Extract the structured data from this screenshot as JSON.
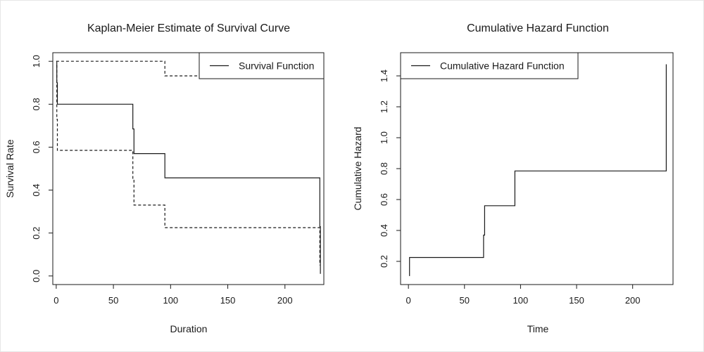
{
  "chart_data": [
    {
      "type": "line",
      "title": "Kaplan-Meier Estimate of Survival Curve",
      "xlabel": "Duration",
      "ylabel": "Survival Rate",
      "xlim": [
        -3,
        234
      ],
      "ylim": [
        -0.04,
        1.04
      ],
      "xticks": [
        0,
        50,
        100,
        150,
        200
      ],
      "xtick_labels": [
        "0",
        "50",
        "100",
        "150",
        "200"
      ],
      "yticks": [
        0.0,
        0.2,
        0.4,
        0.6,
        0.8,
        1.0
      ],
      "ytick_labels": [
        "0.0",
        "0.2",
        "0.4",
        "0.6",
        "0.8",
        "1.0"
      ],
      "legend": {
        "position": "top-right",
        "entries": [
          "Survival Function"
        ]
      },
      "series": [
        {
          "name": "Survival Function",
          "style": "solid",
          "x": [
            0,
            0.5,
            0.5,
            1,
            1,
            67,
            67,
            68,
            68,
            95,
            95,
            230.5,
            230.5,
            231,
            231
          ],
          "y": [
            1.0,
            1.0,
            0.9,
            0.9,
            0.8,
            0.8,
            0.685,
            0.685,
            0.57,
            0.57,
            0.457,
            0.457,
            0.23,
            0.23,
            0.01
          ]
        },
        {
          "style": "dashed",
          "x": [
            0,
            95,
            95,
            231
          ],
          "y": [
            1.0,
            1.0,
            0.932,
            0.932
          ]
        },
        {
          "style": "dashed",
          "x": [
            0,
            0.5,
            0.5,
            1,
            1,
            67,
            67,
            68,
            68,
            95,
            95,
            230.5,
            230.5
          ],
          "y": [
            0.98,
            0.98,
            0.73,
            0.73,
            0.585,
            0.585,
            0.45,
            0.45,
            0.33,
            0.33,
            0.225,
            0.225,
            0.05
          ]
        }
      ]
    },
    {
      "type": "line",
      "title": "Cumulative Hazard Function",
      "xlabel": "Time",
      "ylabel": "Cumulative Hazard",
      "xlim": [
        -7,
        236
      ],
      "ylim": [
        0.05,
        1.55
      ],
      "xticks": [
        0,
        50,
        100,
        150,
        200
      ],
      "xtick_labels": [
        "0",
        "50",
        "100",
        "150",
        "200"
      ],
      "yticks": [
        0.2,
        0.4,
        0.6,
        0.8,
        1.0,
        1.2,
        1.4
      ],
      "ytick_labels": [
        "0.2",
        "0.4",
        "0.6",
        "0.8",
        "1.0",
        "1.2",
        "1.4"
      ],
      "legend": {
        "position": "top-left",
        "entries": [
          "Cumulative Hazard Function"
        ]
      },
      "series": [
        {
          "name": "Cumulative Hazard Function",
          "style": "solid",
          "x": [
            1,
            1,
            67,
            67,
            68,
            68,
            95,
            95,
            230,
            230
          ],
          "y": [
            0.105,
            0.225,
            0.225,
            0.37,
            0.37,
            0.56,
            0.56,
            0.785,
            0.785,
            1.475
          ]
        }
      ]
    }
  ]
}
